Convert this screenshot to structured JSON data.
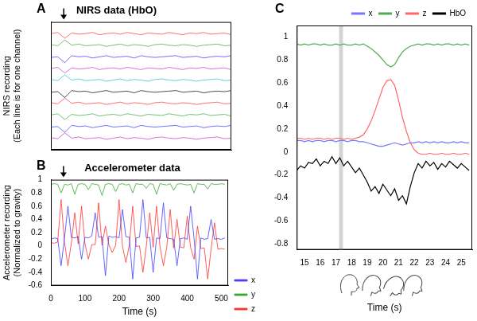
{
  "chart_data": [
    {
      "type": "line",
      "panel_label": "A",
      "title": "NIRS data (HbO)",
      "y_label": [
        "NIRS recording",
        "(Each line is for one channel)"
      ],
      "tick_labels": false,
      "grid": false,
      "arrow_x": 37,
      "xlim": [
        0,
        520
      ],
      "ylim": [
        0,
        11
      ],
      "x": [
        0,
        20,
        40,
        60,
        80,
        100,
        120,
        140,
        160,
        180,
        200,
        220,
        240,
        260,
        280,
        300,
        320,
        340,
        360,
        380,
        400,
        420,
        440,
        460,
        480,
        500,
        520
      ],
      "series": [
        {
          "color": "#ff3333",
          "values": [
            10,
            10.1,
            9.6,
            10.05,
            9.95,
            10,
            10.1,
            9.9,
            10,
            10.05,
            9.95,
            10.1,
            10,
            9.9,
            10.05,
            10,
            9.95,
            10.1,
            10,
            9.9,
            10.05,
            10,
            10.1,
            9.95,
            10,
            10.05,
            9.9
          ]
        },
        {
          "color": "#33aa33",
          "values": [
            9.05,
            8.95,
            9.45,
            9,
            9.1,
            8.95,
            9,
            9.05,
            8.9,
            9,
            9.1,
            8.95,
            9.05,
            9,
            8.9,
            9.05,
            9.1,
            9,
            8.95,
            9.05,
            9,
            8.9,
            9,
            9.05,
            9.1,
            8.95,
            9
          ]
        },
        {
          "color": "#3333ff",
          "values": [
            7.95,
            8,
            7.5,
            8.1,
            8,
            8.05,
            7.9,
            8,
            8.1,
            7.95,
            8,
            8.05,
            7.9,
            8.1,
            8,
            7.95,
            8,
            8.05,
            8.1,
            7.95,
            8,
            8.05,
            7.9,
            8,
            8.05,
            8,
            8.1
          ]
        },
        {
          "color": "#cc33cc",
          "values": [
            7,
            7.1,
            6.6,
            7.05,
            6.95,
            7,
            7.1,
            6.9,
            7,
            7.05,
            6.95,
            7.1,
            7,
            6.9,
            7.05,
            7,
            6.95,
            7.1,
            7,
            6.9,
            7.05,
            7,
            7.1,
            6.95,
            7,
            7.05,
            6.9
          ]
        },
        {
          "color": "#22bbcc",
          "values": [
            6.05,
            5.95,
            6.45,
            6,
            6.1,
            5.95,
            6,
            6.05,
            5.9,
            6,
            6.1,
            5.95,
            6.05,
            6,
            5.9,
            6.05,
            6.1,
            6,
            5.95,
            6.05,
            6,
            5.9,
            6,
            6.05,
            6.1,
            5.95,
            6
          ]
        },
        {
          "color": "#000000",
          "values": [
            4.95,
            5,
            4.5,
            5.1,
            5,
            5.05,
            4.9,
            5,
            5.1,
            4.95,
            5,
            5.05,
            4.9,
            5.1,
            5,
            4.95,
            5,
            5.05,
            5.1,
            4.95,
            5,
            5.05,
            4.9,
            5,
            5.05,
            5,
            5.1
          ]
        },
        {
          "color": "#ff3333",
          "values": [
            4.05,
            3.95,
            4.45,
            4,
            4.1,
            3.95,
            4,
            4.05,
            3.9,
            4,
            4.1,
            3.95,
            4.05,
            4,
            3.9,
            4.05,
            4.1,
            4,
            3.95,
            4.05,
            4,
            3.9,
            4,
            4.05,
            4.1,
            3.95,
            4
          ]
        },
        {
          "color": "#33aa33",
          "values": [
            3,
            3.1,
            2.6,
            3.05,
            2.95,
            3,
            3.1,
            2.9,
            3,
            3.05,
            2.95,
            3.1,
            3,
            2.9,
            3.05,
            3,
            2.95,
            3.1,
            3,
            2.9,
            3.05,
            3,
            3.1,
            2.95,
            3,
            3.05,
            2.9
          ]
        },
        {
          "color": "#3333ff",
          "values": [
            1.95,
            2,
            1.5,
            2.1,
            2,
            2.05,
            1.9,
            2,
            2.1,
            1.95,
            2,
            2.05,
            1.9,
            2.1,
            2,
            1.95,
            2,
            2.05,
            2.1,
            1.95,
            2,
            2.05,
            1.9,
            2,
            2.05,
            2,
            2.1
          ]
        },
        {
          "color": "#cc33cc",
          "values": [
            1.05,
            0.95,
            1.45,
            1,
            1.1,
            0.95,
            1,
            1.05,
            0.9,
            1,
            1.1,
            0.95,
            1.05,
            1,
            0.9,
            1.05,
            1.1,
            1,
            0.95,
            1.05,
            1,
            0.9,
            1,
            1.05,
            1.1,
            0.95,
            1
          ]
        }
      ]
    },
    {
      "type": "line",
      "panel_label": "B",
      "title": "Accelerometer data",
      "y_label": [
        "Accelerometer recording",
        "(Normalized to gravity)"
      ],
      "x_label": "Time (s)",
      "grid": false,
      "legend": "right",
      "arrow_x": 37,
      "xlim": [
        0,
        520
      ],
      "xticks": [
        0,
        100,
        200,
        300,
        400,
        500
      ],
      "ylim": [
        -0.6,
        1
      ],
      "yticks": [
        -0.6,
        -0.4,
        -0.2,
        0,
        0.2,
        0.4,
        0.6,
        0.8,
        1
      ],
      "x": [
        0,
        10,
        20,
        30,
        40,
        50,
        60,
        70,
        80,
        90,
        100,
        110,
        120,
        130,
        140,
        150,
        160,
        170,
        180,
        190,
        200,
        210,
        220,
        230,
        240,
        250,
        260,
        270,
        280,
        290,
        300,
        310,
        320,
        330,
        340,
        350,
        360,
        370,
        380,
        390,
        400,
        410,
        420,
        430,
        440,
        450,
        460,
        470,
        480,
        490,
        500,
        510
      ],
      "series": [
        {
          "name": "x",
          "color": "#4040ff",
          "values": [
            0.1,
            0.12,
            0.11,
            -0.3,
            0.12,
            0.6,
            0.13,
            0.12,
            0.14,
            -0.2,
            0.13,
            0.12,
            0.15,
            0.5,
            0.13,
            0.14,
            -0.45,
            0.15,
            0.13,
            0.14,
            0.12,
            0.55,
            0.14,
            0.13,
            -0.5,
            0.12,
            0.13,
            0.7,
            0.12,
            0.13,
            -0.4,
            0.12,
            0.11,
            0.65,
            0.12,
            0.11,
            0.1,
            -0.3,
            0.11,
            0.12,
            0.1,
            0.6,
            0.11,
            -0.5,
            0.12,
            0.1,
            0.11,
            0.4,
            0.1,
            0.11,
            0.1,
            0.12
          ]
        },
        {
          "name": "y",
          "color": "#33aa33",
          "values": [
            0.93,
            0.94,
            0.93,
            0.8,
            0.93,
            0.92,
            0.94,
            0.78,
            0.93,
            0.94,
            0.93,
            0.85,
            0.94,
            0.93,
            0.92,
            0.76,
            0.93,
            0.94,
            0.93,
            0.82,
            0.93,
            0.94,
            0.92,
            0.93,
            0.8,
            0.94,
            0.93,
            0.93,
            0.87,
            0.94,
            0.93,
            0.78,
            0.94,
            0.93,
            0.92,
            0.94,
            0.84,
            0.93,
            0.94,
            0.93,
            0.92,
            0.93,
            0.8,
            0.94,
            0.93,
            0.93,
            0.86,
            0.94,
            0.93,
            0.93,
            0.94,
            0.93
          ]
        },
        {
          "name": "z",
          "color": "#ff3333",
          "values": [
            0.05,
            0.04,
            0.06,
            0.7,
            0.05,
            -0.3,
            0.04,
            0.5,
            0.03,
            0.6,
            0.03,
            -0.2,
            0.02,
            0.02,
            0.65,
            0.01,
            0.3,
            0.02,
            -0.1,
            0.01,
            0.7,
            0,
            -0.25,
            0.01,
            0.6,
            -0.01,
            0,
            -0.4,
            0,
            0.5,
            -0.02,
            0.6,
            -0.01,
            -0.3,
            -0.02,
            0.55,
            -0.03,
            0.4,
            -0.02,
            -0.03,
            0.45,
            -0.03,
            -0.2,
            0.3,
            -0.04,
            -0.03,
            -0.5,
            -0.04,
            0.35,
            -0.05,
            -0.04,
            -0.05
          ]
        }
      ]
    },
    {
      "type": "line",
      "panel_label": "C",
      "x_label": "Time (s)",
      "grid": false,
      "legend": "top",
      "highlight": [
        17.2,
        17.45
      ],
      "xlim": [
        14.5,
        25.7
      ],
      "xticks": [
        15,
        16,
        17,
        18,
        19,
        20,
        21,
        22,
        23,
        24,
        25
      ],
      "ylim": [
        -0.85,
        1.1
      ],
      "yticks": [
        -0.8,
        -0.6,
        -0.4,
        -0.2,
        0,
        0.2,
        0.4,
        0.6,
        0.8,
        1
      ],
      "x": [
        14.5,
        14.75,
        15,
        15.25,
        15.5,
        15.75,
        16,
        16.25,
        16.5,
        16.75,
        17,
        17.25,
        17.5,
        17.75,
        18,
        18.25,
        18.5,
        18.75,
        19,
        19.25,
        19.5,
        19.75,
        20,
        20.25,
        20.5,
        20.75,
        21,
        21.25,
        21.5,
        21.75,
        22,
        22.25,
        22.5,
        22.75,
        23,
        23.25,
        23.5,
        23.75,
        24,
        24.25,
        24.5,
        24.75,
        25,
        25.25,
        25.5
      ],
      "series": [
        {
          "name": "x",
          "color": "#7777ff",
          "values": [
            0.1,
            0.1,
            0.09,
            0.1,
            0.09,
            0.1,
            0.1,
            0.09,
            0.1,
            0.1,
            0.09,
            0.1,
            0.1,
            0.09,
            0.1,
            0.1,
            0.09,
            0.09,
            0.08,
            0.07,
            0.06,
            0.05,
            0.05,
            0.06,
            0.07,
            0.08,
            0.07,
            0.06,
            0.07,
            0.08,
            0.08,
            0.09,
            0.08,
            0.09,
            0.08,
            0.09,
            0.08,
            0.09,
            0.08,
            0.08,
            0.09,
            0.08,
            0.09,
            0.08,
            0.08
          ]
        },
        {
          "name": "y",
          "color": "#55aa55",
          "values": [
            0.94,
            0.93,
            0.94,
            0.93,
            0.94,
            0.94,
            0.93,
            0.94,
            0.93,
            0.93,
            0.94,
            0.93,
            0.94,
            0.93,
            0.93,
            0.94,
            0.93,
            0.94,
            0.92,
            0.9,
            0.87,
            0.84,
            0.8,
            0.76,
            0.74,
            0.76,
            0.82,
            0.87,
            0.9,
            0.92,
            0.93,
            0.94,
            0.93,
            0.94,
            0.94,
            0.93,
            0.94,
            0.93,
            0.94,
            0.94,
            0.93,
            0.94,
            0.93,
            0.94,
            0.93
          ]
        },
        {
          "name": "z",
          "color": "#ff6666",
          "values": [
            0.12,
            0.12,
            0.11,
            0.12,
            0.11,
            0.12,
            0.12,
            0.11,
            0.12,
            0.11,
            0.12,
            0.12,
            0.11,
            0.12,
            0.11,
            0.12,
            0.13,
            0.15,
            0.2,
            0.27,
            0.36,
            0.46,
            0.56,
            0.62,
            0.63,
            0.58,
            0.45,
            0.3,
            0.18,
            0.08,
            0.02,
            -0.01,
            -0.02,
            -0.02,
            -0.01,
            -0.02,
            -0.02,
            -0.01,
            -0.02,
            -0.02,
            -0.01,
            -0.02,
            -0.02,
            -0.01,
            -0.02
          ]
        },
        {
          "name": "HbO",
          "color": "#000000",
          "values": [
            -0.16,
            -0.12,
            -0.14,
            -0.09,
            -0.1,
            -0.06,
            -0.12,
            -0.08,
            -0.1,
            -0.04,
            -0.1,
            -0.05,
            -0.12,
            -0.08,
            -0.13,
            -0.18,
            -0.14,
            -0.2,
            -0.26,
            -0.34,
            -0.3,
            -0.36,
            -0.28,
            -0.33,
            -0.38,
            -0.32,
            -0.42,
            -0.38,
            -0.45,
            -0.3,
            -0.18,
            -0.1,
            -0.14,
            -0.08,
            -0.12,
            -0.09,
            -0.15,
            -0.1,
            -0.13,
            -0.08,
            -0.11,
            -0.14,
            -0.1,
            -0.13,
            -0.16
          ]
        }
      ]
    }
  ]
}
